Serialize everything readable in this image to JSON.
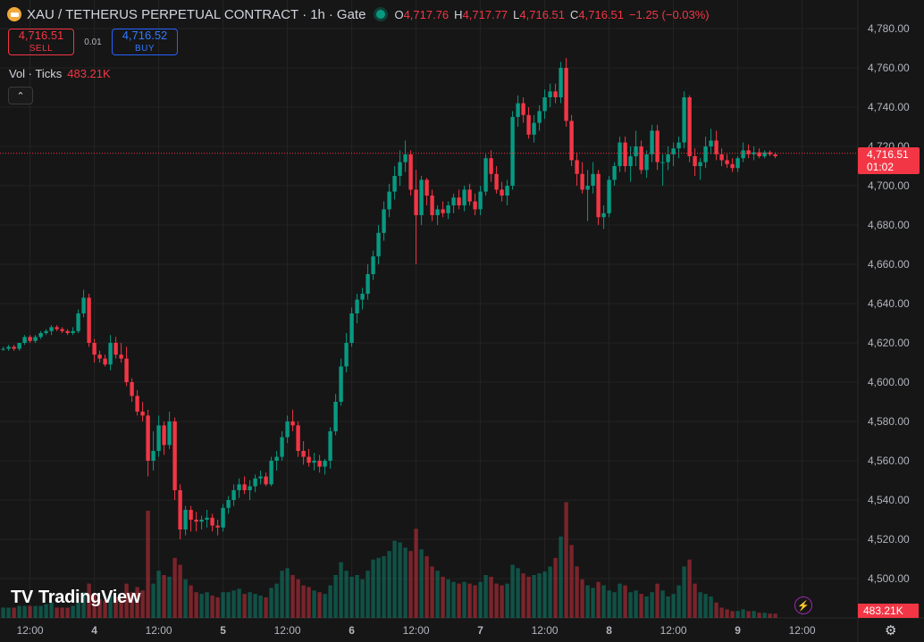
{
  "header": {
    "title": "XAU / TETHERUS PERPETUAL CONTRACT",
    "interval": "1h",
    "exchange": "Gate",
    "ohlc": {
      "o_label": "O",
      "o": "4,717.76",
      "h_label": "H",
      "h": "4,717.77",
      "l_label": "L",
      "l": "4,716.51",
      "c_label": "C",
      "c": "4,716.51",
      "change": "−1.25 (−0.03%)"
    }
  },
  "trade": {
    "sell_price": "4,716.51",
    "sell_label": "SELL",
    "spread": "0.01",
    "buy_price": "4,716.52",
    "buy_label": "BUY"
  },
  "volume_legend": {
    "label": "Vol · Ticks",
    "value": "483.21K"
  },
  "price_badge": {
    "price": "4,716.51",
    "countdown": "01:02"
  },
  "volume_badge": "483.21K",
  "branding": "TradingView",
  "icons": {
    "collapse": "chevron-up-icon",
    "settings": "gear-icon",
    "replay": "lightning-icon"
  },
  "colors": {
    "up": "#089981",
    "down": "#f23645",
    "background": "#161616",
    "grid": "#232323"
  },
  "chart_data": {
    "type": "candlestick",
    "interval": "1h",
    "y_axis": {
      "ticks": [
        "4,780.00",
        "4,760.00",
        "4,740.00",
        "4,720.00",
        "4,700.00",
        "4,680.00",
        "4,660.00",
        "4,640.00",
        "4,620.00",
        "4,600.00",
        "4,580.00",
        "4,560.00",
        "4,540.00",
        "4,520.00",
        "4,500.00"
      ],
      "range": [
        4480,
        4790
      ],
      "grid": true
    },
    "x_axis": {
      "ticks": [
        "12:00",
        "4",
        "12:00",
        "5",
        "12:00",
        "6",
        "12:00",
        "7",
        "12:00",
        "8",
        "12:00",
        "9",
        "12:00"
      ],
      "tick_index": [
        8,
        20,
        32,
        44,
        56,
        68,
        80,
        92,
        104,
        116,
        128,
        140,
        152
      ]
    },
    "last_price": 4716.51,
    "candles": [
      [
        4616,
        4617,
        4615,
        4616,
        10
      ],
      [
        4616,
        4617,
        4615,
        4616,
        10
      ],
      [
        4616,
        4617,
        4615,
        4617,
        10
      ],
      [
        4617,
        4618,
        4616,
        4617,
        12
      ],
      [
        4617,
        4619,
        4616,
        4618,
        12
      ],
      [
        4618,
        4619,
        4616,
        4617,
        12
      ],
      [
        4617,
        4620,
        4616,
        4620,
        14
      ],
      [
        4620,
        4624,
        4619,
        4623,
        14
      ],
      [
        4623,
        4624,
        4620,
        4621,
        14
      ],
      [
        4621,
        4624,
        4620,
        4623,
        14
      ],
      [
        4623,
        4626,
        4622,
        4625,
        14
      ],
      [
        4625,
        4627,
        4624,
        4626,
        16
      ],
      [
        4626,
        4629,
        4624,
        4628,
        18
      ],
      [
        4628,
        4629,
        4626,
        4627,
        12
      ],
      [
        4627,
        4628,
        4625,
        4626,
        12
      ],
      [
        4626,
        4627,
        4624,
        4625,
        12
      ],
      [
        4625,
        4628,
        4624,
        4626,
        14
      ],
      [
        4626,
        4637,
        4625,
        4635,
        18
      ],
      [
        4635,
        4647,
        4633,
        4643,
        30
      ],
      [
        4643,
        4645,
        4618,
        4620,
        40
      ],
      [
        4620,
        4622,
        4610,
        4614,
        28
      ],
      [
        4614,
        4616,
        4610,
        4612,
        22
      ],
      [
        4612,
        4614,
        4608,
        4609,
        20
      ],
      [
        4609,
        4624,
        4606,
        4620,
        26
      ],
      [
        4620,
        4623,
        4612,
        4614,
        24
      ],
      [
        4614,
        4620,
        4610,
        4612,
        22
      ],
      [
        4612,
        4618,
        4598,
        4600,
        40
      ],
      [
        4600,
        4602,
        4590,
        4593,
        30
      ],
      [
        4593,
        4596,
        4583,
        4585,
        36
      ],
      [
        4585,
        4590,
        4580,
        4583,
        32
      ],
      [
        4583,
        4586,
        4552,
        4560,
        125
      ],
      [
        4560,
        4575,
        4555,
        4565,
        40
      ],
      [
        4565,
        4583,
        4562,
        4578,
        55
      ],
      [
        4578,
        4580,
        4563,
        4568,
        50
      ],
      [
        4568,
        4585,
        4566,
        4580,
        48
      ],
      [
        4580,
        4582,
        4540,
        4545,
        70
      ],
      [
        4545,
        4548,
        4520,
        4525,
        62
      ],
      [
        4525,
        4537,
        4522,
        4535,
        45
      ],
      [
        4535,
        4537,
        4524,
        4530,
        38
      ],
      [
        4530,
        4534,
        4524,
        4529,
        30
      ],
      [
        4529,
        4532,
        4525,
        4530,
        28
      ],
      [
        4530,
        4535,
        4526,
        4531,
        30
      ],
      [
        4531,
        4533,
        4524,
        4527,
        26
      ],
      [
        4527,
        4530,
        4522,
        4526,
        24
      ],
      [
        4526,
        4538,
        4524,
        4536,
        30
      ],
      [
        4536,
        4542,
        4533,
        4540,
        30
      ],
      [
        4540,
        4548,
        4537,
        4545,
        32
      ],
      [
        4545,
        4551,
        4541,
        4548,
        34
      ],
      [
        4548,
        4552,
        4543,
        4545,
        28
      ],
      [
        4545,
        4550,
        4540,
        4547,
        30
      ],
      [
        4547,
        4553,
        4544,
        4551,
        28
      ],
      [
        4551,
        4555,
        4548,
        4552,
        26
      ],
      [
        4552,
        4554,
        4547,
        4548,
        24
      ],
      [
        4548,
        4562,
        4547,
        4560,
        35
      ],
      [
        4560,
        4565,
        4555,
        4562,
        40
      ],
      [
        4562,
        4575,
        4560,
        4572,
        55
      ],
      [
        4572,
        4583,
        4569,
        4580,
        58
      ],
      [
        4580,
        4586,
        4575,
        4578,
        50
      ],
      [
        4578,
        4580,
        4562,
        4565,
        45
      ],
      [
        4565,
        4570,
        4558,
        4562,
        38
      ],
      [
        4562,
        4566,
        4557,
        4559,
        36
      ],
      [
        4559,
        4564,
        4555,
        4560,
        32
      ],
      [
        4560,
        4563,
        4554,
        4557,
        30
      ],
      [
        4557,
        4561,
        4553,
        4560,
        28
      ],
      [
        4560,
        4577,
        4556,
        4575,
        38
      ],
      [
        4575,
        4594,
        4573,
        4590,
        50
      ],
      [
        4590,
        4612,
        4588,
        4608,
        65
      ],
      [
        4608,
        4625,
        4605,
        4620,
        55
      ],
      [
        4620,
        4638,
        4618,
        4635,
        48
      ],
      [
        4635,
        4645,
        4630,
        4642,
        50
      ],
      [
        4642,
        4648,
        4637,
        4645,
        45
      ],
      [
        4645,
        4660,
        4642,
        4655,
        55
      ],
      [
        4655,
        4667,
        4652,
        4664,
        68
      ],
      [
        4664,
        4680,
        4660,
        4676,
        70
      ],
      [
        4676,
        4692,
        4672,
        4688,
        72
      ],
      [
        4688,
        4701,
        4684,
        4697,
        78
      ],
      [
        4697,
        4710,
        4693,
        4705,
        90
      ],
      [
        4705,
        4718,
        4700,
        4712,
        88
      ],
      [
        4712,
        4723,
        4707,
        4716,
        82
      ],
      [
        4716,
        4718,
        4695,
        4698,
        78
      ],
      [
        4698,
        4708,
        4660,
        4685,
        104
      ],
      [
        4685,
        4705,
        4680,
        4703,
        80
      ],
      [
        4703,
        4704,
        4690,
        4695,
        72
      ],
      [
        4695,
        4698,
        4682,
        4685,
        60
      ],
      [
        4685,
        4690,
        4680,
        4688,
        55
      ],
      [
        4688,
        4692,
        4684,
        4686,
        48
      ],
      [
        4686,
        4692,
        4683,
        4690,
        45
      ],
      [
        4690,
        4696,
        4686,
        4694,
        42
      ],
      [
        4694,
        4698,
        4688,
        4690,
        40
      ],
      [
        4690,
        4700,
        4687,
        4698,
        42
      ],
      [
        4698,
        4701,
        4690,
        4692,
        40
      ],
      [
        4692,
        4696,
        4685,
        4688,
        38
      ],
      [
        4688,
        4700,
        4685,
        4697,
        42
      ],
      [
        4697,
        4716,
        4695,
        4714,
        50
      ],
      [
        4714,
        4718,
        4702,
        4706,
        48
      ],
      [
        4706,
        4710,
        4696,
        4698,
        40
      ],
      [
        4698,
        4702,
        4692,
        4695,
        38
      ],
      [
        4695,
        4703,
        4690,
        4700,
        40
      ],
      [
        4700,
        4738,
        4698,
        4735,
        62
      ],
      [
        4735,
        4746,
        4730,
        4742,
        58
      ],
      [
        4742,
        4745,
        4732,
        4736,
        52
      ],
      [
        4736,
        4740,
        4724,
        4726,
        48
      ],
      [
        4726,
        4736,
        4722,
        4732,
        50
      ],
      [
        4732,
        4741,
        4728,
        4738,
        52
      ],
      [
        4738,
        4749,
        4734,
        4745,
        54
      ],
      [
        4745,
        4752,
        4740,
        4748,
        60
      ],
      [
        4748,
        4752,
        4742,
        4745,
        70
      ],
      [
        4745,
        4763,
        4742,
        4760,
        95
      ],
      [
        4760,
        4765,
        4730,
        4733,
        135
      ],
      [
        4733,
        4736,
        4710,
        4713,
        85
      ],
      [
        4713,
        4717,
        4700,
        4706,
        60
      ],
      [
        4706,
        4712,
        4696,
        4698,
        45
      ],
      [
        4698,
        4708,
        4682,
        4700,
        38
      ],
      [
        4700,
        4712,
        4696,
        4706,
        35
      ],
      [
        4706,
        4708,
        4680,
        4684,
        42
      ],
      [
        4684,
        4690,
        4678,
        4686,
        38
      ],
      [
        4686,
        4705,
        4684,
        4703,
        32
      ],
      [
        4703,
        4712,
        4700,
        4710,
        30
      ],
      [
        4710,
        4725,
        4707,
        4722,
        40
      ],
      [
        4722,
        4725,
        4707,
        4710,
        38
      ],
      [
        4710,
        4720,
        4702,
        4715,
        30
      ],
      [
        4715,
        4728,
        4710,
        4720,
        32
      ],
      [
        4720,
        4723,
        4706,
        4708,
        28
      ],
      [
        4708,
        4718,
        4704,
        4716,
        25
      ],
      [
        4716,
        4731,
        4712,
        4728,
        30
      ],
      [
        4728,
        4731,
        4708,
        4712,
        40
      ],
      [
        4712,
        4716,
        4700,
        4712,
        32
      ],
      [
        4712,
        4720,
        4708,
        4716,
        25
      ],
      [
        4716,
        4722,
        4710,
        4719,
        28
      ],
      [
        4719,
        4725,
        4714,
        4722,
        38
      ],
      [
        4722,
        4748,
        4719,
        4745,
        60
      ],
      [
        4745,
        4746,
        4712,
        4715,
        68
      ],
      [
        4715,
        4719,
        4705,
        4710,
        40
      ],
      [
        4710,
        4714,
        4703,
        4712,
        30
      ],
      [
        4712,
        4725,
        4709,
        4720,
        28
      ],
      [
        4720,
        4729,
        4716,
        4723,
        25
      ],
      [
        4723,
        4728,
        4713,
        4716,
        18
      ],
      [
        4716,
        4719,
        4710,
        4713,
        12
      ],
      [
        4713,
        4716,
        4709,
        4711,
        10
      ],
      [
        4711,
        4714,
        4707,
        4709,
        8
      ],
      [
        4709,
        4715,
        4707,
        4714,
        8
      ],
      [
        4714,
        4722,
        4712,
        4718,
        10
      ],
      [
        4718,
        4721,
        4714,
        4716,
        8
      ],
      [
        4716,
        4720,
        4713,
        4717,
        8
      ],
      [
        4717,
        4719,
        4714,
        4715,
        6
      ],
      [
        4715,
        4718,
        4714,
        4717,
        6
      ],
      [
        4717,
        4718,
        4715,
        4716,
        5
      ],
      [
        4716,
        4717,
        4714,
        4715,
        5
      ]
    ]
  }
}
